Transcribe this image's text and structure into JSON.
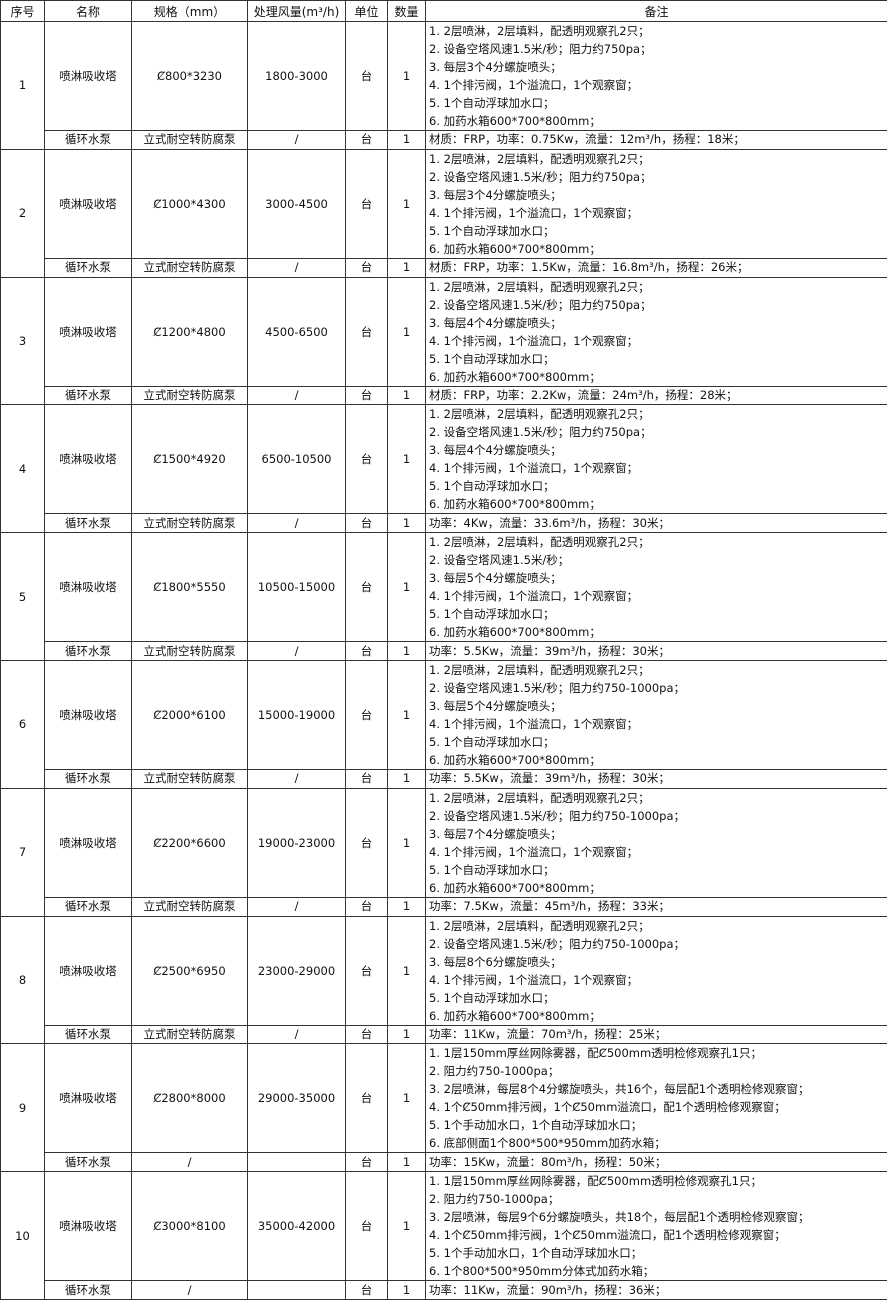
{
  "table": {
    "header": [
      "序号",
      "名称",
      "规格（mm）",
      "处理风量(m³/h)",
      "单位",
      "数量",
      "备注"
    ],
    "rows": [
      {
        "no": "1",
        "tower": {
          "name": "喷淋吸收塔",
          "spec": "Ȼ800*3230",
          "airflow": "1800-3000",
          "unit": "台",
          "qty": "1",
          "notes": [
            "1. 2层喷淋，2层填料，配透明观察孔2只；",
            "2. 设备空塔风速1.5米/秒；阻力约750pa；",
            "3. 每层3个4分螺旋喷头；",
            "4. 1个排污阀，1个溢流口，1个观察窗；",
            "5. 1个自动浮球加水口；",
            "6. 加药水箱600*700*800mm；"
          ]
        },
        "pump": {
          "name": "循环水泵",
          "spec": "立式耐空转防腐泵",
          "airflow": "/",
          "unit": "台",
          "qty": "1",
          "note": "材质：FRP，功率：0.75Kw，流量：12m³/h，扬程：18米；"
        }
      },
      {
        "no": "2",
        "tower": {
          "name": "喷淋吸收塔",
          "spec": "Ȼ1000*4300",
          "airflow": "3000-4500",
          "unit": "台",
          "qty": "1",
          "notes": [
            "1. 2层喷淋，2层填料，配透明观察孔2只；",
            "2. 设备空塔风速1.5米/秒；阻力约750pa；",
            "3. 每层3个4分螺旋喷头；",
            "4. 1个排污阀，1个溢流口，1个观察窗；",
            "5. 1个自动浮球加水口；",
            "6. 加药水箱600*700*800mm；"
          ]
        },
        "pump": {
          "name": "循环水泵",
          "spec": "立式耐空转防腐泵",
          "airflow": "/",
          "unit": "台",
          "qty": "1",
          "note": "材质：FRP，功率：1.5Kw，流量：16.8m³/h，扬程：26米；"
        }
      },
      {
        "no": "3",
        "tower": {
          "name": "喷淋吸收塔",
          "spec": "Ȼ1200*4800",
          "airflow": "4500-6500",
          "unit": "台",
          "qty": "1",
          "notes": [
            "1. 2层喷淋，2层填料，配透明观察孔2只；",
            "2. 设备空塔风速1.5米/秒；阻力约750pa；",
            "3. 每层4个4分螺旋喷头；",
            "4. 1个排污阀，1个溢流口，1个观察窗；",
            "5. 1个自动浮球加水口；",
            "6. 加药水箱600*700*800mm；"
          ]
        },
        "pump": {
          "name": "循环水泵",
          "spec": "立式耐空转防腐泵",
          "airflow": "/",
          "unit": "台",
          "qty": "1",
          "note": "材质：FRP，功率：2.2Kw，流量：24m³/h，扬程：28米；"
        }
      },
      {
        "no": "4",
        "tower": {
          "name": "喷淋吸收塔",
          "spec": "Ȼ1500*4920",
          "airflow": "6500-10500",
          "unit": "台",
          "qty": "1",
          "notes": [
            "1. 2层喷淋，2层填料，配透明观察孔2只；",
            "2. 设备空塔风速1.5米/秒；阻力约750pa；",
            "3. 每层4个4分螺旋喷头；",
            "4. 1个排污阀，1个溢流口，1个观察窗；",
            "5. 1个自动浮球加水口；",
            "6. 加药水箱600*700*800mm；"
          ]
        },
        "pump": {
          "name": "循环水泵",
          "spec": "立式耐空转防腐泵",
          "airflow": "/",
          "unit": "台",
          "qty": "1",
          "note": "功率：4Kw，流量：33.6m³/h，扬程：30米；"
        }
      },
      {
        "no": "5",
        "tower": {
          "name": "喷淋吸收塔",
          "spec": "Ȼ1800*5550",
          "airflow": "10500-15000",
          "unit": "台",
          "qty": "1",
          "notes": [
            "1. 2层喷淋，2层填料，配透明观察孔2只；",
            "2. 设备空塔风速1.5米/秒；",
            "3. 每层5个4分螺旋喷头；",
            "4. 1个排污阀，1个溢流口，1个观察窗；",
            "5. 1个自动浮球加水口；",
            "6. 加药水箱600*700*800mm；"
          ]
        },
        "pump": {
          "name": "循环水泵",
          "spec": "立式耐空转防腐泵",
          "airflow": "/",
          "unit": "台",
          "qty": "1",
          "note": "功率：5.5Kw，流量：39m³/h，扬程：30米；"
        }
      },
      {
        "no": "6",
        "tower": {
          "name": "喷淋吸收塔",
          "spec": "Ȼ2000*6100",
          "airflow": "15000-19000",
          "unit": "台",
          "qty": "1",
          "notes": [
            "1. 2层喷淋，2层填料，配透明观察孔2只；",
            "2. 设备空塔风速1.5米/秒；阻力约750-1000pa；",
            "3. 每层5个4分螺旋喷头；",
            "4. 1个排污阀，1个溢流口，1个观察窗；",
            "5. 1个自动浮球加水口；",
            "6. 加药水箱600*700*800mm；"
          ]
        },
        "pump": {
          "name": "循环水泵",
          "spec": "立式耐空转防腐泵",
          "airflow": "/",
          "unit": "台",
          "qty": "1",
          "note": "功率：5.5Kw，流量：39m³/h，扬程：30米；"
        }
      },
      {
        "no": "7",
        "tower": {
          "name": "喷淋吸收塔",
          "spec": "Ȼ2200*6600",
          "airflow": "19000-23000",
          "unit": "台",
          "qty": "1",
          "notes": [
            "1. 2层喷淋，2层填料，配透明观察孔2只；",
            "2. 设备空塔风速1.5米/秒；阻力约750-1000pa；",
            "3. 每层7个4分螺旋喷头；",
            "4. 1个排污阀，1个溢流口，1个观察窗；",
            "5. 1个自动浮球加水口；",
            "6. 加药水箱600*700*800mm；"
          ]
        },
        "pump": {
          "name": "循环水泵",
          "spec": "立式耐空转防腐泵",
          "airflow": "/",
          "unit": "台",
          "qty": "1",
          "note": "功率：7.5Kw，流量：45m³/h，扬程：33米；"
        }
      },
      {
        "no": "8",
        "tower": {
          "name": "喷淋吸收塔",
          "spec": "Ȼ2500*6950",
          "airflow": "23000-29000",
          "unit": "台",
          "qty": "1",
          "notes": [
            "1. 2层喷淋，2层填料，配透明观察孔2只；",
            "2. 设备空塔风速1.5米/秒；阻力约750-1000pa；",
            "3. 每层8个6分螺旋喷头；",
            "4. 1个排污阀，1个溢流口，1个观察窗；",
            "5. 1个自动浮球加水口；",
            "6. 加药水箱600*700*800mm；"
          ]
        },
        "pump": {
          "name": "循环水泵",
          "spec": "立式耐空转防腐泵",
          "airflow": "/",
          "unit": "台",
          "qty": "1",
          "note": "功率：11Kw，流量：70m³/h，扬程：25米；"
        }
      },
      {
        "no": "9",
        "tower": {
          "name": "喷淋吸收塔",
          "spec": "Ȼ2800*8000",
          "airflow": "29000-35000",
          "unit": "台",
          "qty": "1",
          "notes": [
            "1. 1层150mm厚丝网除雾器，配Ȼ500mm透明检修观察孔1只；",
            "2. 阻力约750-1000pa；",
            "3. 2层喷淋，每层8个4分螺旋喷头，共16个，每层配1个透明检修观察窗；",
            "4. 1个Ȼ50mm排污阀，1个Ȼ50mm溢流口，配1个透明检修观察窗；",
            "5. 1个手动加水口，1个自动浮球加水口；",
            "6. 底部侧面1个800*500*950mm加药水箱；"
          ]
        },
        "pump": {
          "name": "循环水泵",
          "spec": "/",
          "unit": "台",
          "qty": "1",
          "note": "功率：15Kw，流量：80m³/h，扬程：50米；"
        }
      },
      {
        "no": "10",
        "tower": {
          "name": "喷淋吸收塔",
          "spec": "Ȼ3000*8100",
          "airflow": "35000-42000",
          "unit": "台",
          "qty": "1",
          "notes": [
            "1. 1层150mm厚丝网除雾器，配Ȼ500mm透明检修观察孔1只；",
            "2. 阻力约750-1000pa；",
            "3. 2层喷淋，每层9个6分螺旋喷头，共18个，每层配1个透明检修观察窗；",
            "4. 1个Ȼ50mm排污阀，1个Ȼ50mm溢流口，配1个透明检修观察窗；",
            "5. 1个手动加水口，1个自动浮球加水口；",
            "6. 1个800*500*950mm分体式加药水箱；"
          ]
        },
        "pump": {
          "name": "循环水泵",
          "spec": "/",
          "unit": "台",
          "qty": "1",
          "note": "功率：11Kw，流量：90m³/h，扬程：36米；"
        }
      }
    ]
  }
}
